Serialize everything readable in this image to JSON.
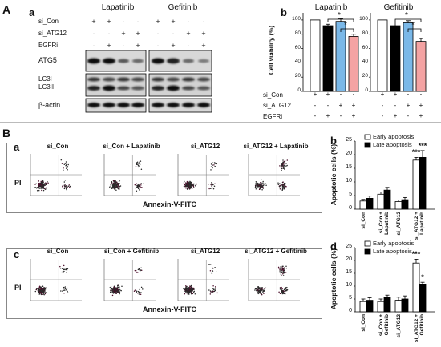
{
  "panel_labels": {
    "A": "A",
    "Aa": "a",
    "Ab": "b",
    "B": "B",
    "Ba": "a",
    "Bb": "b",
    "Bc": "c",
    "Bd": "d"
  },
  "western_blot": {
    "drug_headers": [
      "Lapatinib",
      "Gefitinib"
    ],
    "row_labels": [
      "si_Con",
      "si_ATG12",
      "EGFRi"
    ],
    "row_signs": [
      [
        "+",
        "+",
        "-",
        "-",
        "+",
        "+",
        "-",
        "-"
      ],
      [
        "-",
        "-",
        "+",
        "+",
        "-",
        "-",
        "+",
        "+"
      ],
      [
        "-",
        "+",
        "-",
        "+",
        "-",
        "+",
        "-",
        "+"
      ]
    ],
    "bands": [
      "ATG5",
      "LC3I",
      "LC3II",
      "β-actin"
    ]
  },
  "viability": {
    "ylabel": "Cell viability (%)",
    "yticks": [
      "0",
      "20",
      "40",
      "60",
      "80",
      "100"
    ],
    "ylim": [
      0,
      110
    ],
    "row_labels": [
      "si_Con",
      "si_ATG12",
      "EGFRi"
    ],
    "row_signs": [
      [
        "+",
        "+",
        "-",
        "-"
      ],
      [
        "-",
        "-",
        "+",
        "+"
      ],
      [
        "-",
        "+",
        "-",
        "+"
      ]
    ],
    "colors": [
      "#ffffff",
      "#000000",
      "#7ab8e8",
      "#f4a3a3"
    ],
    "star": "*"
  },
  "flow": {
    "row1_titles": [
      "si_Con",
      "si_Con + Lapatinib",
      "si_ATG12",
      "si_ATG12 + Lapatinib"
    ],
    "row2_titles": [
      "si_Con",
      "si_Con + Gefitinib",
      "si_ATG12",
      "si_ATG12 + Gefitinib"
    ],
    "ylabel": "PI",
    "xlabel": "Annexin-V-FITC"
  },
  "apoptosis": {
    "ylabel": "Apoptotic cells (%)",
    "legend": [
      "Early apoptosis",
      "Late apoptosis"
    ],
    "yticks": [
      "0",
      "5",
      "10",
      "15",
      "20",
      "25"
    ],
    "ylim": [
      0,
      25
    ],
    "categories_b": [
      "si_Con",
      "si_Con + Lapatinib",
      "si_ATG12",
      "si_ATG12 + Lapatinib"
    ],
    "categories_d": [
      "si_Con",
      "si_Con + Gefitinib",
      "si_ATG12",
      "si_ATG12 + Gefitinib"
    ],
    "sig_label": "***",
    "sig_label_small": "*"
  },
  "chart_data": [
    {
      "type": "bar",
      "title": "Lapatinib",
      "ylabel": "Cell viability (%)",
      "categories": [
        "si_Con",
        "si_Con + EGFRi",
        "si_ATG12",
        "si_ATG12 + EGFRi"
      ],
      "values": [
        100,
        92,
        98,
        77
      ],
      "errors": [
        0,
        2,
        4,
        3
      ],
      "ylim": [
        0,
        110
      ]
    },
    {
      "type": "bar",
      "title": "Gefitinib",
      "ylabel": "Cell viability (%)",
      "categories": [
        "si_Con",
        "si_Con + EGFRi",
        "si_ATG12",
        "si_ATG12 + EGFRi"
      ],
      "values": [
        100,
        92,
        96,
        70
      ],
      "errors": [
        0,
        5,
        3,
        4
      ],
      "ylim": [
        0,
        110
      ]
    },
    {
      "type": "bar",
      "ylabel": "Apoptotic cells (%)",
      "categories": [
        "si_Con",
        "si_Con + Lapatinib",
        "si_ATG12",
        "si_ATG12 + Lapatinib"
      ],
      "series": [
        {
          "name": "Early apoptosis",
          "values": [
            3.0,
            5.5,
            2.8,
            18.0
          ],
          "errors": [
            0.6,
            0.8,
            0.6,
            1.0
          ]
        },
        {
          "name": "Late apoptosis",
          "values": [
            4.0,
            7.0,
            3.5,
            19.0
          ],
          "errors": [
            0.8,
            1.0,
            0.8,
            2.5
          ]
        }
      ],
      "ylim": [
        0,
        25
      ]
    },
    {
      "type": "bar",
      "ylabel": "Apoptotic cells (%)",
      "categories": [
        "si_Con",
        "si_Con + Gefitinib",
        "si_ATG12",
        "si_ATG12 + Gefitinib"
      ],
      "series": [
        {
          "name": "Early apoptosis",
          "values": [
            4.0,
            4.0,
            4.5,
            19.0
          ],
          "errors": [
            1.0,
            1.0,
            1.2,
            1.5
          ]
        },
        {
          "name": "Late apoptosis",
          "values": [
            4.5,
            5.5,
            5.0,
            10.5
          ],
          "errors": [
            1.0,
            1.0,
            1.2,
            1.0
          ]
        }
      ],
      "ylim": [
        0,
        25
      ]
    }
  ]
}
